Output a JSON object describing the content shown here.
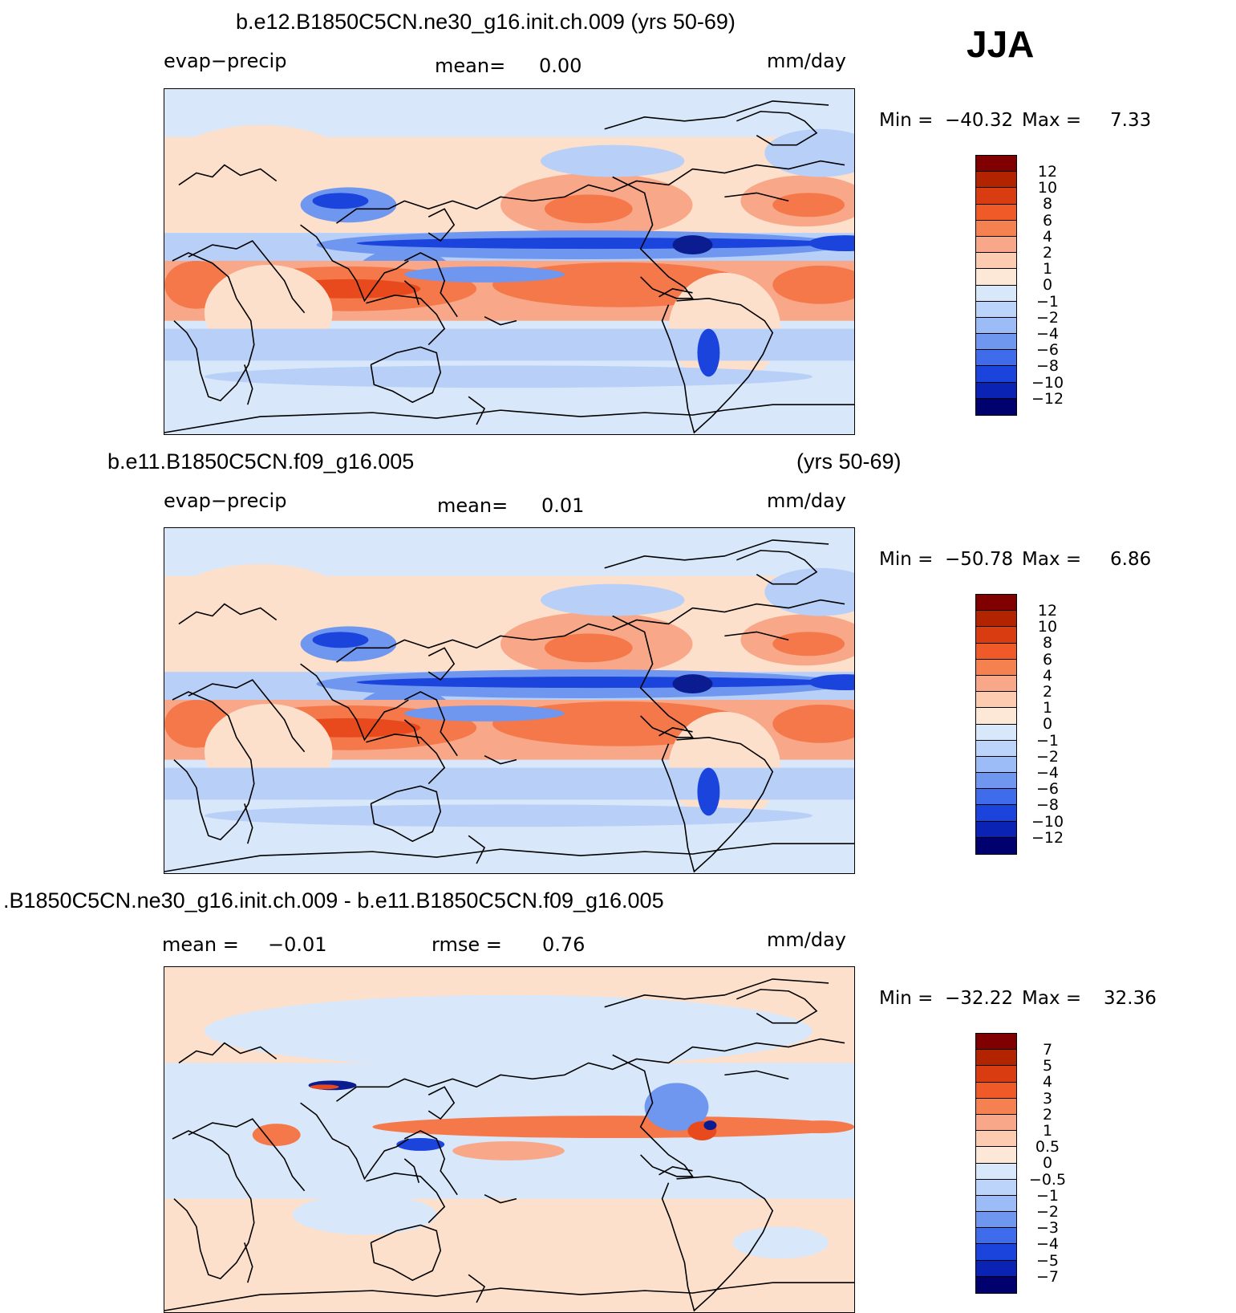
{
  "season": "JJA",
  "panels": [
    {
      "title": "b.e12.B1850C5CN.ne30_g16.init.ch.009 (yrs 50-69)",
      "left_label": "evap−precip",
      "center_label": "mean=",
      "center_value": "0.00",
      "units": "mm/day",
      "min_label": "Min  =",
      "min_value": "−40.32",
      "max_label": "Max  =",
      "max_value": "7.33",
      "colorbar_ticks": [
        "12",
        "10",
        "8",
        "6",
        "4",
        "2",
        "1",
        "0",
        "−1",
        "−2",
        "−4",
        "−6",
        "−8",
        "−10",
        "−12"
      ]
    },
    {
      "title": "b.e11.B1850C5CN.f09_g16.005",
      "title_right": "(yrs 50-69)",
      "left_label": "evap−precip",
      "center_label": "mean=",
      "center_value": "0.01",
      "units": "mm/day",
      "min_label": "Min  =",
      "min_value": "−50.78",
      "max_label": "Max  =",
      "max_value": "6.86",
      "colorbar_ticks": [
        "12",
        "10",
        "8",
        "6",
        "4",
        "2",
        "1",
        "0",
        "−1",
        "−2",
        "−4",
        "−6",
        "−8",
        "−10",
        "−12"
      ]
    },
    {
      "title": ".B1850C5CN.ne30_g16.init.ch.009 - b.e11.B1850C5CN.f09_g16.005",
      "left_label": "mean  =",
      "left_value": "−0.01",
      "center_label": "rmse  =",
      "center_value": "0.76",
      "units": "mm/day",
      "min_label": "Min  =",
      "min_value": "−32.22",
      "max_label": "Max  =",
      "max_value": "32.36",
      "colorbar_ticks": [
        "7",
        "5",
        "4",
        "3",
        "2",
        "1",
        "0.5",
        "0",
        "−0.5",
        "−1",
        "−2",
        "−3",
        "−4",
        "−5",
        "−7"
      ]
    }
  ],
  "colorbar_colors": [
    "#800000",
    "#b22400",
    "#d83c10",
    "#f05a28",
    "#f58050",
    "#f8a888",
    "#fccbb0",
    "#fde8d8",
    "#d8e8fa",
    "#bcd4fa",
    "#9cbcf8",
    "#6f97f0",
    "#3f6cea",
    "#1a44dc",
    "#0a23b4",
    "#00006e"
  ],
  "field_colors": {
    "deep_red": "#e84a1e",
    "red": "#f5784a",
    "light_red": "#f8a888",
    "pale_red": "#fde0cc",
    "pale_blue": "#d8e8fa",
    "light_blue": "#b8d0f8",
    "blue": "#6f97f0",
    "deep_blue": "#1a44dc",
    "navy": "#0a1c90"
  }
}
